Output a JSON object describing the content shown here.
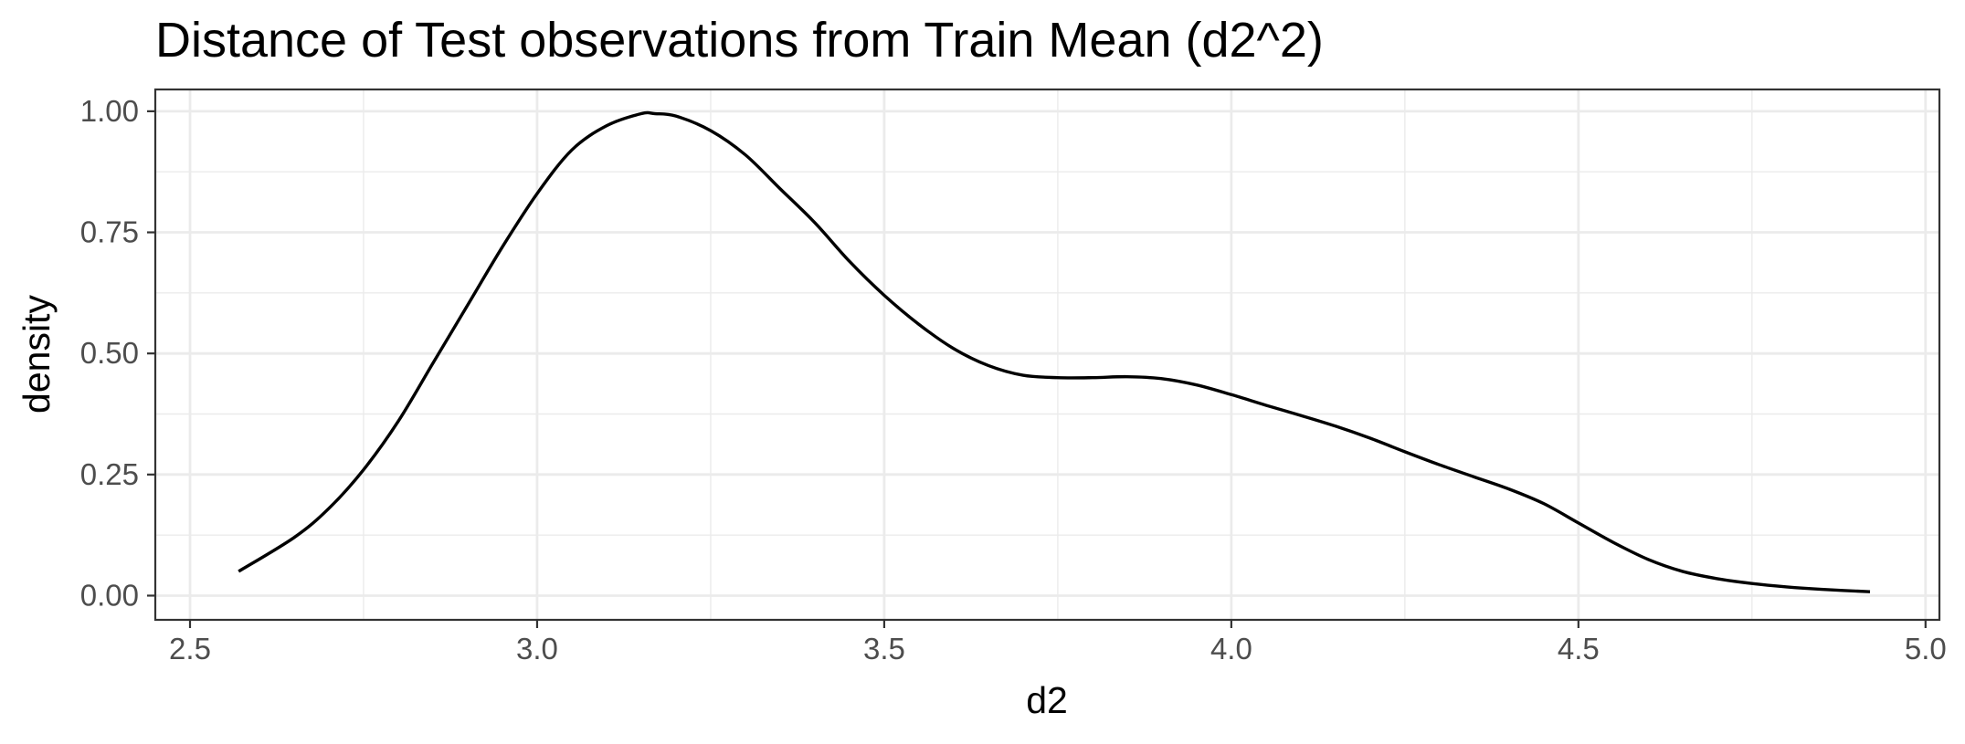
{
  "chart_data": {
    "type": "line",
    "title": "Distance of Test observations from Train Mean (d2^2)",
    "xlabel": "d2",
    "ylabel": "density",
    "xlim": [
      2.45,
      5.02
    ],
    "ylim": [
      -0.05,
      1.045
    ],
    "x_ticks": [
      2.5,
      3.0,
      3.5,
      4.0,
      4.5,
      5.0
    ],
    "x_tick_labels": [
      "2.5",
      "3.0",
      "3.5",
      "4.0",
      "4.5",
      "5.0"
    ],
    "y_ticks": [
      0.0,
      0.25,
      0.5,
      0.75,
      1.0
    ],
    "y_tick_labels": [
      "0.00",
      "0.25",
      "0.50",
      "0.75",
      "1.00"
    ],
    "grid": true,
    "legend": "none",
    "series": [
      {
        "color": "#000000",
        "x": [
          2.57,
          2.65,
          2.7,
          2.75,
          2.8,
          2.85,
          2.9,
          2.95,
          3.0,
          3.05,
          3.1,
          3.15,
          3.17,
          3.2,
          3.25,
          3.3,
          3.35,
          3.4,
          3.45,
          3.5,
          3.55,
          3.6,
          3.65,
          3.7,
          3.75,
          3.8,
          3.85,
          3.9,
          3.95,
          4.0,
          4.05,
          4.1,
          4.15,
          4.2,
          4.25,
          4.3,
          4.35,
          4.4,
          4.45,
          4.5,
          4.55,
          4.6,
          4.65,
          4.7,
          4.75,
          4.8,
          4.85,
          4.92
        ],
        "y": [
          0.05,
          0.12,
          0.18,
          0.26,
          0.36,
          0.48,
          0.6,
          0.72,
          0.83,
          0.92,
          0.97,
          0.995,
          0.995,
          0.99,
          0.96,
          0.91,
          0.84,
          0.77,
          0.69,
          0.62,
          0.56,
          0.51,
          0.475,
          0.455,
          0.45,
          0.45,
          0.452,
          0.448,
          0.435,
          0.415,
          0.393,
          0.372,
          0.35,
          0.325,
          0.297,
          0.27,
          0.245,
          0.22,
          0.19,
          0.15,
          0.11,
          0.075,
          0.05,
          0.035,
          0.025,
          0.018,
          0.013,
          0.008
        ]
      }
    ]
  }
}
